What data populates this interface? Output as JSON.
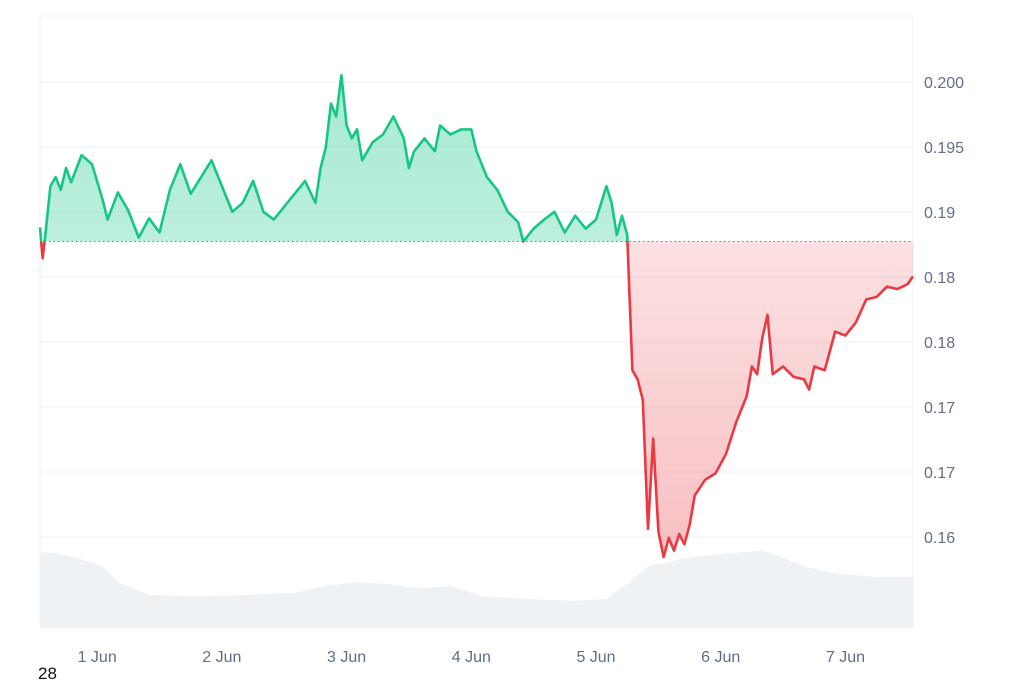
{
  "corner_label": "28",
  "colors": {
    "up": "#16c784",
    "down": "#ea3943",
    "grid": "#eef0f3",
    "axis_text": "#616e85",
    "volume": "#eff2f5",
    "baseline": "#c05a5a"
  },
  "chart_data": {
    "type": "area",
    "title": "",
    "xlabel": "",
    "ylabel": "",
    "x_ticks": [
      "1 Jun",
      "2 Jun",
      "3 Jun",
      "4 Jun",
      "5 Jun",
      "6 Jun",
      "7 Jun"
    ],
    "y_ticks": [
      "0.200",
      "0.195",
      "0.19",
      "0.18",
      "0.18",
      "0.17",
      "0.17",
      "0.16"
    ],
    "baseline_value": 0.1875,
    "ylim": [
      0.1575,
      0.205
    ],
    "xlim": [
      "31 May 13:00",
      "7 Jun 13:00"
    ],
    "series": [
      {
        "values": [
          [
            "31 May 13:00",
            0.1886
          ],
          [
            "31 May 13:30",
            0.1862
          ],
          [
            "31 May 14:00",
            0.1879
          ],
          [
            "31 May 15:00",
            0.1918
          ],
          [
            "31 May 16:00",
            0.1925
          ],
          [
            "31 May 17:00",
            0.1915
          ],
          [
            "31 May 18:00",
            0.1932
          ],
          [
            "31 May 19:00",
            0.1921
          ],
          [
            "31 May 21:00",
            0.1942
          ],
          [
            "31 May 23:00",
            0.1935
          ],
          [
            "1 Jun 01:00",
            0.1908
          ],
          [
            "1 Jun 02:00",
            0.1892
          ],
          [
            "1 Jun 04:00",
            0.1913
          ],
          [
            "1 Jun 06:00",
            0.1899
          ],
          [
            "1 Jun 08:00",
            0.1878
          ],
          [
            "1 Jun 10:00",
            0.1893
          ],
          [
            "1 Jun 12:00",
            0.1882
          ],
          [
            "1 Jun 14:00",
            0.1915
          ],
          [
            "1 Jun 16:00",
            0.1935
          ],
          [
            "1 Jun 18:00",
            0.1912
          ],
          [
            "1 Jun 20:00",
            0.1925
          ],
          [
            "1 Jun 22:00",
            0.1938
          ],
          [
            "2 Jun 00:00",
            0.1918
          ],
          [
            "2 Jun 02:00",
            0.1898
          ],
          [
            "2 Jun 04:00",
            0.1905
          ],
          [
            "2 Jun 06:00",
            0.1922
          ],
          [
            "2 Jun 08:00",
            0.1898
          ],
          [
            "2 Jun 10:00",
            0.1892
          ],
          [
            "2 Jun 12:00",
            0.1902
          ],
          [
            "2 Jun 14:00",
            0.1912
          ],
          [
            "2 Jun 16:00",
            0.1922
          ],
          [
            "2 Jun 18:00",
            0.1905
          ],
          [
            "2 Jun 19:00",
            0.1932
          ],
          [
            "2 Jun 20:00",
            0.1948
          ],
          [
            "2 Jun 21:00",
            0.1982
          ],
          [
            "2 Jun 22:00",
            0.1972
          ],
          [
            "2 Jun 23:00",
            0.2004
          ],
          [
            "3 Jun 00:00",
            0.1965
          ],
          [
            "3 Jun 01:00",
            0.1955
          ],
          [
            "3 Jun 02:00",
            0.1962
          ],
          [
            "3 Jun 03:00",
            0.1938
          ],
          [
            "3 Jun 05:00",
            0.1952
          ],
          [
            "3 Jun 07:00",
            0.1958
          ],
          [
            "3 Jun 09:00",
            0.1972
          ],
          [
            "3 Jun 11:00",
            0.1955
          ],
          [
            "3 Jun 12:00",
            0.1932
          ],
          [
            "3 Jun 13:00",
            0.1945
          ],
          [
            "3 Jun 15:00",
            0.1955
          ],
          [
            "3 Jun 17:00",
            0.1945
          ],
          [
            "3 Jun 18:00",
            0.1965
          ],
          [
            "3 Jun 20:00",
            0.1958
          ],
          [
            "3 Jun 22:00",
            0.1962
          ],
          [
            "4 Jun 00:00",
            0.1962
          ],
          [
            "4 Jun 01:00",
            0.1945
          ],
          [
            "4 Jun 03:00",
            0.1925
          ],
          [
            "4 Jun 05:00",
            0.1915
          ],
          [
            "4 Jun 07:00",
            0.1898
          ],
          [
            "4 Jun 09:00",
            0.189
          ],
          [
            "4 Jun 10:00",
            0.1875
          ],
          [
            "4 Jun 12:00",
            0.1885
          ],
          [
            "4 Jun 14:00",
            0.1892
          ],
          [
            "4 Jun 16:00",
            0.1898
          ],
          [
            "4 Jun 18:00",
            0.1882
          ],
          [
            "4 Jun 20:00",
            0.1895
          ],
          [
            "4 Jun 22:00",
            0.1885
          ],
          [
            "5 Jun 00:00",
            0.1892
          ],
          [
            "5 Jun 02:00",
            0.1918
          ],
          [
            "5 Jun 03:00",
            0.1905
          ],
          [
            "5 Jun 04:00",
            0.188
          ],
          [
            "5 Jun 05:00",
            0.1895
          ],
          [
            "5 Jun 06:00",
            0.188
          ],
          [
            "5 Jun 07:00",
            0.1775
          ],
          [
            "5 Jun 08:00",
            0.1768
          ],
          [
            "5 Jun 09:00",
            0.1752
          ],
          [
            "5 Jun 10:00",
            0.1652
          ],
          [
            "5 Jun 11:00",
            0.1722
          ],
          [
            "5 Jun 12:00",
            0.165
          ],
          [
            "5 Jun 13:00",
            0.163
          ],
          [
            "5 Jun 14:00",
            0.1645
          ],
          [
            "5 Jun 15:00",
            0.1635
          ],
          [
            "5 Jun 16:00",
            0.1648
          ],
          [
            "5 Jun 17:00",
            0.164
          ],
          [
            "5 Jun 18:00",
            0.1655
          ],
          [
            "5 Jun 19:00",
            0.1678
          ],
          [
            "5 Jun 21:00",
            0.169
          ],
          [
            "5 Jun 23:00",
            0.1695
          ],
          [
            "6 Jun 01:00",
            0.171
          ],
          [
            "6 Jun 03:00",
            0.1735
          ],
          [
            "6 Jun 05:00",
            0.1755
          ],
          [
            "6 Jun 06:00",
            0.1778
          ],
          [
            "6 Jun 07:00",
            0.1772
          ],
          [
            "6 Jun 08:00",
            0.18
          ],
          [
            "6 Jun 09:00",
            0.1818
          ],
          [
            "6 Jun 10:00",
            0.1772
          ],
          [
            "6 Jun 12:00",
            0.1778
          ],
          [
            "6 Jun 14:00",
            0.177
          ],
          [
            "6 Jun 16:00",
            0.1768
          ],
          [
            "6 Jun 17:00",
            0.176
          ],
          [
            "6 Jun 18:00",
            0.1778
          ],
          [
            "6 Jun 20:00",
            0.1775
          ],
          [
            "6 Jun 22:00",
            0.1805
          ],
          [
            "7 Jun 00:00",
            0.1802
          ],
          [
            "7 Jun 02:00",
            0.1812
          ],
          [
            "7 Jun 04:00",
            0.183
          ],
          [
            "7 Jun 06:00",
            0.1832
          ],
          [
            "7 Jun 08:00",
            0.184
          ],
          [
            "7 Jun 10:00",
            0.1838
          ],
          [
            "7 Jun 12:00",
            0.1842
          ],
          [
            "7 Jun 13:00",
            0.1848
          ]
        ]
      }
    ],
    "volume": {
      "values": [
        [
          "31 May 13:00",
          0.86
        ],
        [
          "31 May 16:00",
          0.85
        ],
        [
          "31 May 20:00",
          0.8
        ],
        [
          "1 Jun 01:00",
          0.7
        ],
        [
          "1 Jun 04:00",
          0.52
        ],
        [
          "1 Jun 10:00",
          0.38
        ],
        [
          "1 Jun 16:00",
          0.36
        ],
        [
          "1 Jun 22:00",
          0.36
        ],
        [
          "2 Jun 06:00",
          0.38
        ],
        [
          "2 Jun 14:00",
          0.4
        ],
        [
          "2 Jun 20:00",
          0.48
        ],
        [
          "3 Jun 02:00",
          0.52
        ],
        [
          "3 Jun 08:00",
          0.5
        ],
        [
          "3 Jun 14:00",
          0.45
        ],
        [
          "3 Jun 20:00",
          0.48
        ],
        [
          "4 Jun 02:00",
          0.36
        ],
        [
          "4 Jun 08:00",
          0.34
        ],
        [
          "4 Jun 14:00",
          0.32
        ],
        [
          "4 Jun 20:00",
          0.31
        ],
        [
          "5 Jun 02:00",
          0.33
        ],
        [
          "5 Jun 06:00",
          0.5
        ],
        [
          "5 Jun 10:00",
          0.7
        ],
        [
          "5 Jun 16:00",
          0.78
        ],
        [
          "5 Jun 22:00",
          0.83
        ],
        [
          "6 Jun 04:00",
          0.86
        ],
        [
          "6 Jun 08:00",
          0.88
        ],
        [
          "6 Jun 12:00",
          0.8
        ],
        [
          "6 Jun 16:00",
          0.7
        ],
        [
          "6 Jun 22:00",
          0.62
        ],
        [
          "7 Jun 06:00",
          0.58
        ],
        [
          "7 Jun 13:00",
          0.58
        ]
      ]
    }
  }
}
